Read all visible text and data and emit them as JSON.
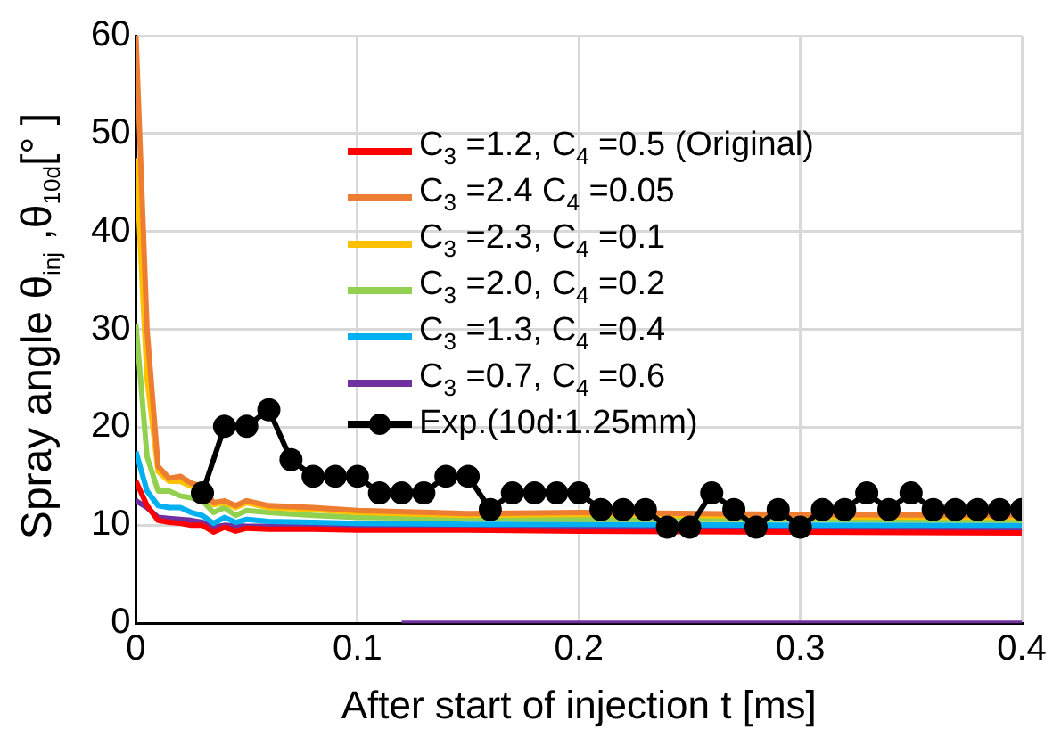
{
  "chart_data": {
    "type": "line",
    "xlabel": "After start of injection t [ms]",
    "ylabel": "Spray  angle θ$_{inj}$ ,θ$_{10d}$[° ]",
    "xlim": [
      0,
      0.4
    ],
    "xticks": [
      0,
      0.1,
      0.2,
      0.3,
      0.4
    ],
    "ylim": [
      0,
      60
    ],
    "yticks": [
      0,
      10,
      20,
      30,
      40,
      50,
      60
    ],
    "grid": true,
    "legend": "top right",
    "marker": "none",
    "line_style": "solid",
    "series": [
      {
        "name": "C$_{3}$ =1.2, C$_{4}$ =0.5 (Original)",
        "color": "#ff0000",
        "x": [
          0,
          0.005,
          0.01,
          0.015,
          0.02,
          0.025,
          0.03,
          0.035,
          0.04,
          0.045,
          0.05,
          0.06,
          0.08,
          0.1,
          0.15,
          0.2,
          0.3,
          0.4
        ],
        "values": [
          14.5,
          12,
          10.5,
          10.3,
          10.2,
          10,
          10,
          9.3,
          9.8,
          9.4,
          9.7,
          9.6,
          9.6,
          9.5,
          9.5,
          9.4,
          9.3,
          9.2
        ]
      },
      {
        "name": "C$_{3}$ =2.4  C$_{4}$ =0.05",
        "color": "#ed7d31",
        "x": [
          0,
          0.005,
          0.01,
          0.015,
          0.02,
          0.025,
          0.03,
          0.035,
          0.04,
          0.045,
          0.05,
          0.06,
          0.08,
          0.1,
          0.15,
          0.2,
          0.3,
          0.4
        ],
        "values": [
          60,
          30,
          16,
          14.8,
          15,
          14.3,
          14,
          12.3,
          12.5,
          12,
          12.5,
          12,
          11.8,
          11.5,
          11.2,
          11.3,
          11.1,
          11
        ]
      },
      {
        "name": "C$_{3}$ =2.3, C$_{4}$ =0.1",
        "color": "#ffc000",
        "x": [
          0,
          0.005,
          0.01,
          0.015,
          0.02,
          0.025,
          0.03,
          0.035,
          0.04,
          0.045,
          0.05,
          0.06,
          0.08,
          0.1,
          0.15,
          0.2,
          0.3,
          0.4
        ],
        "values": [
          47.5,
          25,
          15.5,
          14.5,
          14.5,
          14,
          13.5,
          12.1,
          12.3,
          11.8,
          12.3,
          11.8,
          11.6,
          11.3,
          11,
          11.1,
          10.9,
          10.8
        ]
      },
      {
        "name": "C$_{3}$ =2.0, C$_{4}$ =0.2",
        "color": "#92d050",
        "x": [
          0,
          0.005,
          0.01,
          0.015,
          0.02,
          0.025,
          0.03,
          0.035,
          0.04,
          0.045,
          0.05,
          0.06,
          0.08,
          0.1,
          0.15,
          0.2,
          0.3,
          0.4
        ],
        "values": [
          30.5,
          17,
          13.5,
          13.5,
          13,
          12.8,
          12.5,
          11.3,
          11.8,
          11,
          11.5,
          11.3,
          11,
          10.8,
          10.7,
          10.6,
          10.6,
          10.5
        ]
      },
      {
        "name": "C$_{3}$ =1.3, C$_{4}$ =0.4",
        "color": "#00b0f0",
        "x": [
          0,
          0.005,
          0.01,
          0.015,
          0.02,
          0.025,
          0.03,
          0.035,
          0.04,
          0.045,
          0.05,
          0.06,
          0.08,
          0.1,
          0.15,
          0.2,
          0.3,
          0.4
        ],
        "values": [
          17.5,
          13.5,
          12,
          11.8,
          11.8,
          11.3,
          11,
          10.2,
          10.8,
          10.3,
          10.6,
          10.4,
          10.3,
          10.2,
          10.1,
          10.1,
          10,
          10
        ]
      },
      {
        "name": "C$_{3}$ =0.7, C$_{4}$ =0.6",
        "color": "#7030a0",
        "x": [
          0,
          0.005,
          0.01,
          0.015,
          0.02,
          0.025,
          0.03,
          0.035,
          0.04,
          0.05,
          0.06,
          0.1,
          0.2,
          0.3,
          0.4
        ],
        "values": [
          12.5,
          11.8,
          10.8,
          10.7,
          10.6,
          10.5,
          10.3,
          9.8,
          10,
          9.9,
          9.9,
          9.8,
          9.8,
          9.7,
          9.7
        ]
      },
      {
        "color": "#7030a0",
        "x": [
          0.12,
          0.4
        ],
        "values": [
          0,
          0
        ]
      },
      {
        "name": "Exp.(10d:1.25mm)",
        "color": "#000000",
        "marker": "circle",
        "x": [
          0.03,
          0.04,
          0.05,
          0.06,
          0.07,
          0.08,
          0.09,
          0.1,
          0.11,
          0.12,
          0.13,
          0.14,
          0.15,
          0.16,
          0.17,
          0.18,
          0.19,
          0.2,
          0.21,
          0.22,
          0.23,
          0.24,
          0.25,
          0.26,
          0.27,
          0.28,
          0.29,
          0.3,
          0.31,
          0.32,
          0.33,
          0.34,
          0.35,
          0.36,
          0.37,
          0.38,
          0.39,
          0.4
        ],
        "values": [
          13.3,
          20.1,
          20.1,
          21.8,
          16.7,
          15,
          15,
          15,
          13.3,
          13.3,
          13.3,
          15,
          15,
          11.6,
          13.3,
          13.3,
          13.3,
          13.3,
          11.6,
          11.6,
          11.6,
          9.8,
          9.8,
          13.3,
          11.6,
          9.8,
          11.6,
          9.8,
          11.6,
          11.6,
          13.3,
          11.6,
          13.3,
          11.6,
          11.6,
          11.6,
          11.6,
          11.6
        ]
      }
    ]
  }
}
